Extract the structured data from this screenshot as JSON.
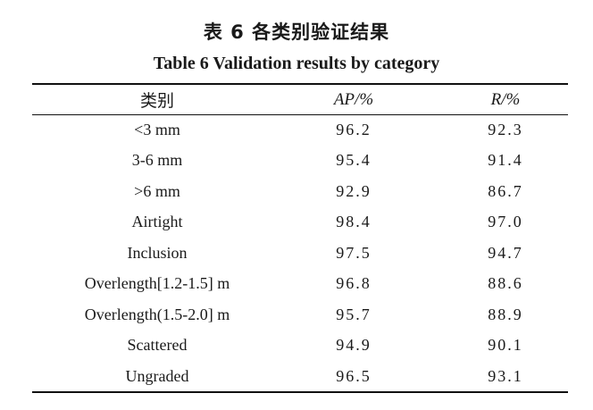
{
  "title_cn": "表 6  各类别验证结果",
  "title_en": "Table 6  Validation results by category",
  "table": {
    "headers": [
      "类别",
      "AP/%",
      "R/%"
    ],
    "rows": [
      {
        "category": "<3 mm",
        "ap": "96.2",
        "r": "92.3"
      },
      {
        "category": "3-6 mm",
        "ap": "95.4",
        "r": "91.4"
      },
      {
        "category": ">6 mm",
        "ap": "92.9",
        "r": "86.7"
      },
      {
        "category": "Airtight",
        "ap": "98.4",
        "r": "97.0"
      },
      {
        "category": "Inclusion",
        "ap": "97.5",
        "r": "94.7"
      },
      {
        "category": "Overlength[1.2-1.5] m",
        "ap": "96.8",
        "r": "88.6"
      },
      {
        "category": "Overlength(1.5-2.0] m",
        "ap": "95.7",
        "r": "88.9"
      },
      {
        "category": "Scattered",
        "ap": "94.9",
        "r": "90.1"
      },
      {
        "category": "Ungraded",
        "ap": "96.5",
        "r": "93.1"
      }
    ]
  }
}
